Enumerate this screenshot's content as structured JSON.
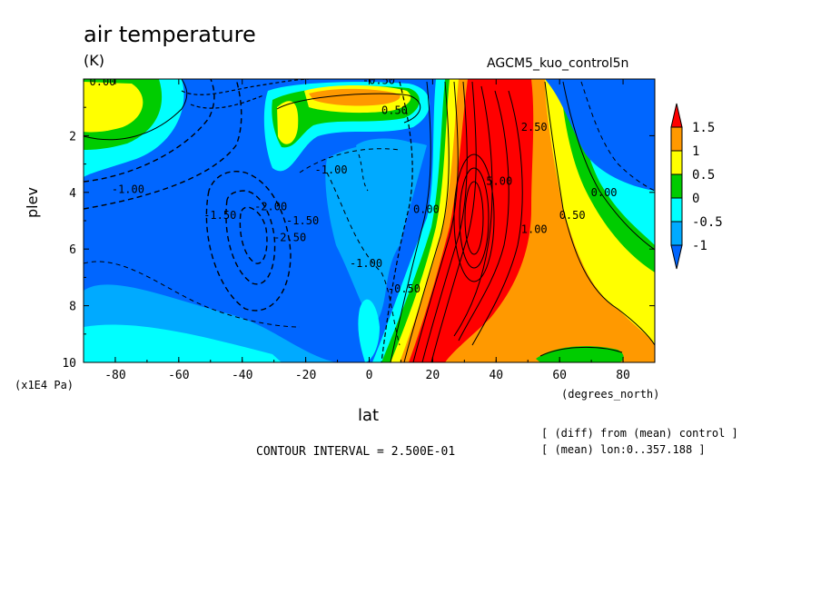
{
  "chart_data": {
    "type": "heatmap",
    "title": "air temperature",
    "units": "(K)",
    "experiment": "AGCM5_kuo_control5n",
    "xlabel": "lat",
    "xunits": "(degrees_north)",
    "ylabel": "plev",
    "yunits": "(x1E4 Pa)",
    "xlim": [
      -90,
      90
    ],
    "ylim": [
      10,
      0
    ],
    "xticks": [
      -80,
      -60,
      -40,
      -20,
      0,
      20,
      40,
      60,
      80
    ],
    "yticks": [
      2,
      4,
      6,
      8,
      10
    ],
    "colorbar": {
      "labels": [
        "1.5",
        "1",
        "0.5",
        "0",
        "-0.5",
        "-1"
      ],
      "bins": [
        {
          "lo": 1.5,
          "hi": null,
          "color": "#ff0000"
        },
        {
          "lo": 1.0,
          "hi": 1.5,
          "color": "#ff9900"
        },
        {
          "lo": 0.5,
          "hi": 1.0,
          "color": "#ffff00"
        },
        {
          "lo": 0.0,
          "hi": 0.5,
          "color": "#00cc00"
        },
        {
          "lo": -0.5,
          "hi": 0.0,
          "color": "#00ffff"
        },
        {
          "lo": -1.0,
          "hi": -0.5,
          "color": "#00aaff"
        },
        {
          "lo": null,
          "hi": -1.0,
          "color": "#0066ff"
        }
      ]
    },
    "contour_labels": [
      {
        "text": "0.00",
        "lat": -84,
        "plev": 0.1
      },
      {
        "text": "-0.50",
        "lat": 3,
        "plev": 0.05
      },
      {
        "text": "0.50",
        "lat": 8,
        "plev": 1.1
      },
      {
        "text": "-1.00",
        "lat": -76,
        "plev": 3.9
      },
      {
        "text": "-1.00",
        "lat": -12,
        "plev": 3.2
      },
      {
        "text": "-1.50",
        "lat": -47,
        "plev": 4.8
      },
      {
        "text": "-2.00",
        "lat": -31,
        "plev": 4.5
      },
      {
        "text": "-1.50",
        "lat": -21,
        "plev": 5.0
      },
      {
        "text": "-2.50",
        "lat": -25,
        "plev": 5.6
      },
      {
        "text": "-1.00",
        "lat": -1,
        "plev": 6.5
      },
      {
        "text": "-0.50",
        "lat": 11,
        "plev": 7.4
      },
      {
        "text": "0.00",
        "lat": 18,
        "plev": 4.6
      },
      {
        "text": "5.00",
        "lat": 41,
        "plev": 3.6
      },
      {
        "text": "2.50",
        "lat": 52,
        "plev": 1.7
      },
      {
        "text": "1.00",
        "lat": 52,
        "plev": 5.3
      },
      {
        "text": "0.50",
        "lat": 64,
        "plev": 4.8
      },
      {
        "text": "0.00",
        "lat": 74,
        "plev": 4.0
      }
    ]
  },
  "notes": {
    "interval": "CONTOUR INTERVAL = 2.500E-01",
    "diff": "[ (diff) from (mean) control ]",
    "lon": "[ (mean) lon:0..357.188 ]"
  }
}
